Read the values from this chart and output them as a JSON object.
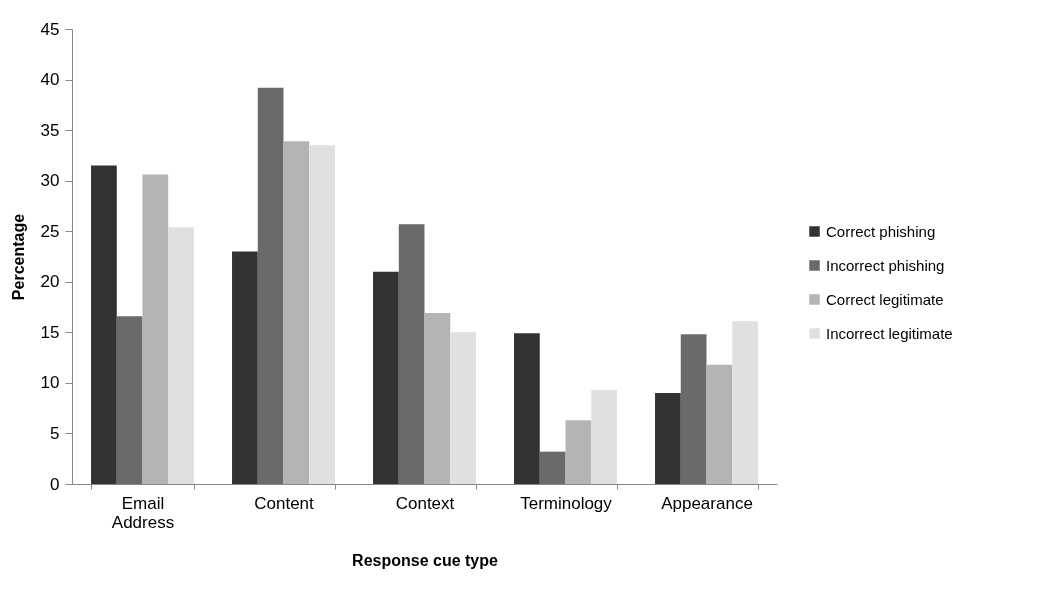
{
  "chart_data": {
    "type": "bar",
    "xlabel": "Response cue type",
    "ylabel": "Percentage",
    "categories": [
      "Email Address",
      "Content",
      "Context",
      "Terminology",
      "Appearance"
    ],
    "series": [
      {
        "name": "Correct phishing",
        "color": "#323232",
        "values": [
          31.5,
          23.0,
          21.0,
          14.9,
          9.0
        ]
      },
      {
        "name": "Incorrect phishing",
        "color": "#6a6a6a",
        "values": [
          16.6,
          39.2,
          25.7,
          3.2,
          14.8
        ]
      },
      {
        "name": "Correct legitimate",
        "color": "#b4b4b4",
        "values": [
          30.6,
          33.9,
          16.9,
          6.3,
          11.8
        ]
      },
      {
        "name": "Incorrect legitimate",
        "color": "#e0e0e0",
        "values": [
          25.4,
          33.5,
          15.0,
          9.3,
          16.1
        ]
      }
    ],
    "ylim": [
      0,
      45
    ],
    "yticks": [
      0,
      5,
      10,
      15,
      20,
      25,
      30,
      35,
      40,
      45
    ],
    "grid": false,
    "legend": "right"
  }
}
